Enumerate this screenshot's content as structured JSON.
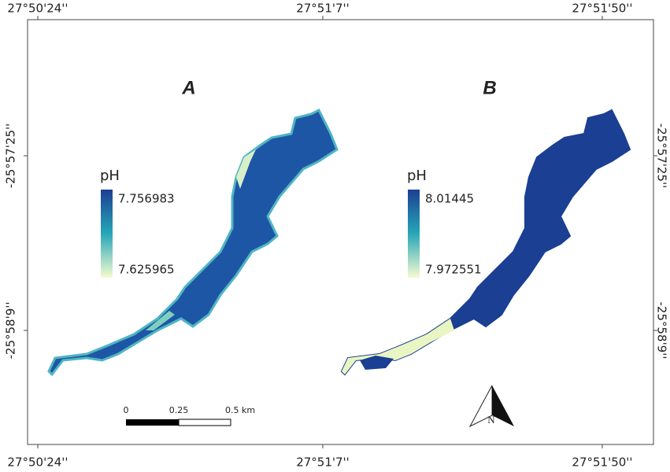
{
  "coordinates": {
    "top": [
      "27°50'24''",
      "27°51'7''",
      "27°51'50''"
    ],
    "bottom": [
      "27°50'24''",
      "27°51'7''",
      "27°51'50''"
    ],
    "left": [
      "-25°57'25''",
      "-25°58'9''"
    ],
    "right": [
      "-25°57'25''",
      "-25°58'9''"
    ]
  },
  "panels": [
    {
      "label": "A",
      "legend": {
        "title": "pH",
        "max": "7.756983",
        "min": "7.625965"
      }
    },
    {
      "label": "B",
      "legend": {
        "title": "pH",
        "max": "8.01445",
        "min": "7.972551"
      }
    }
  ],
  "scale_bar": {
    "labels": [
      "0",
      "0.25",
      "0.5 km"
    ]
  },
  "north_arrow": {
    "label": "N"
  }
}
